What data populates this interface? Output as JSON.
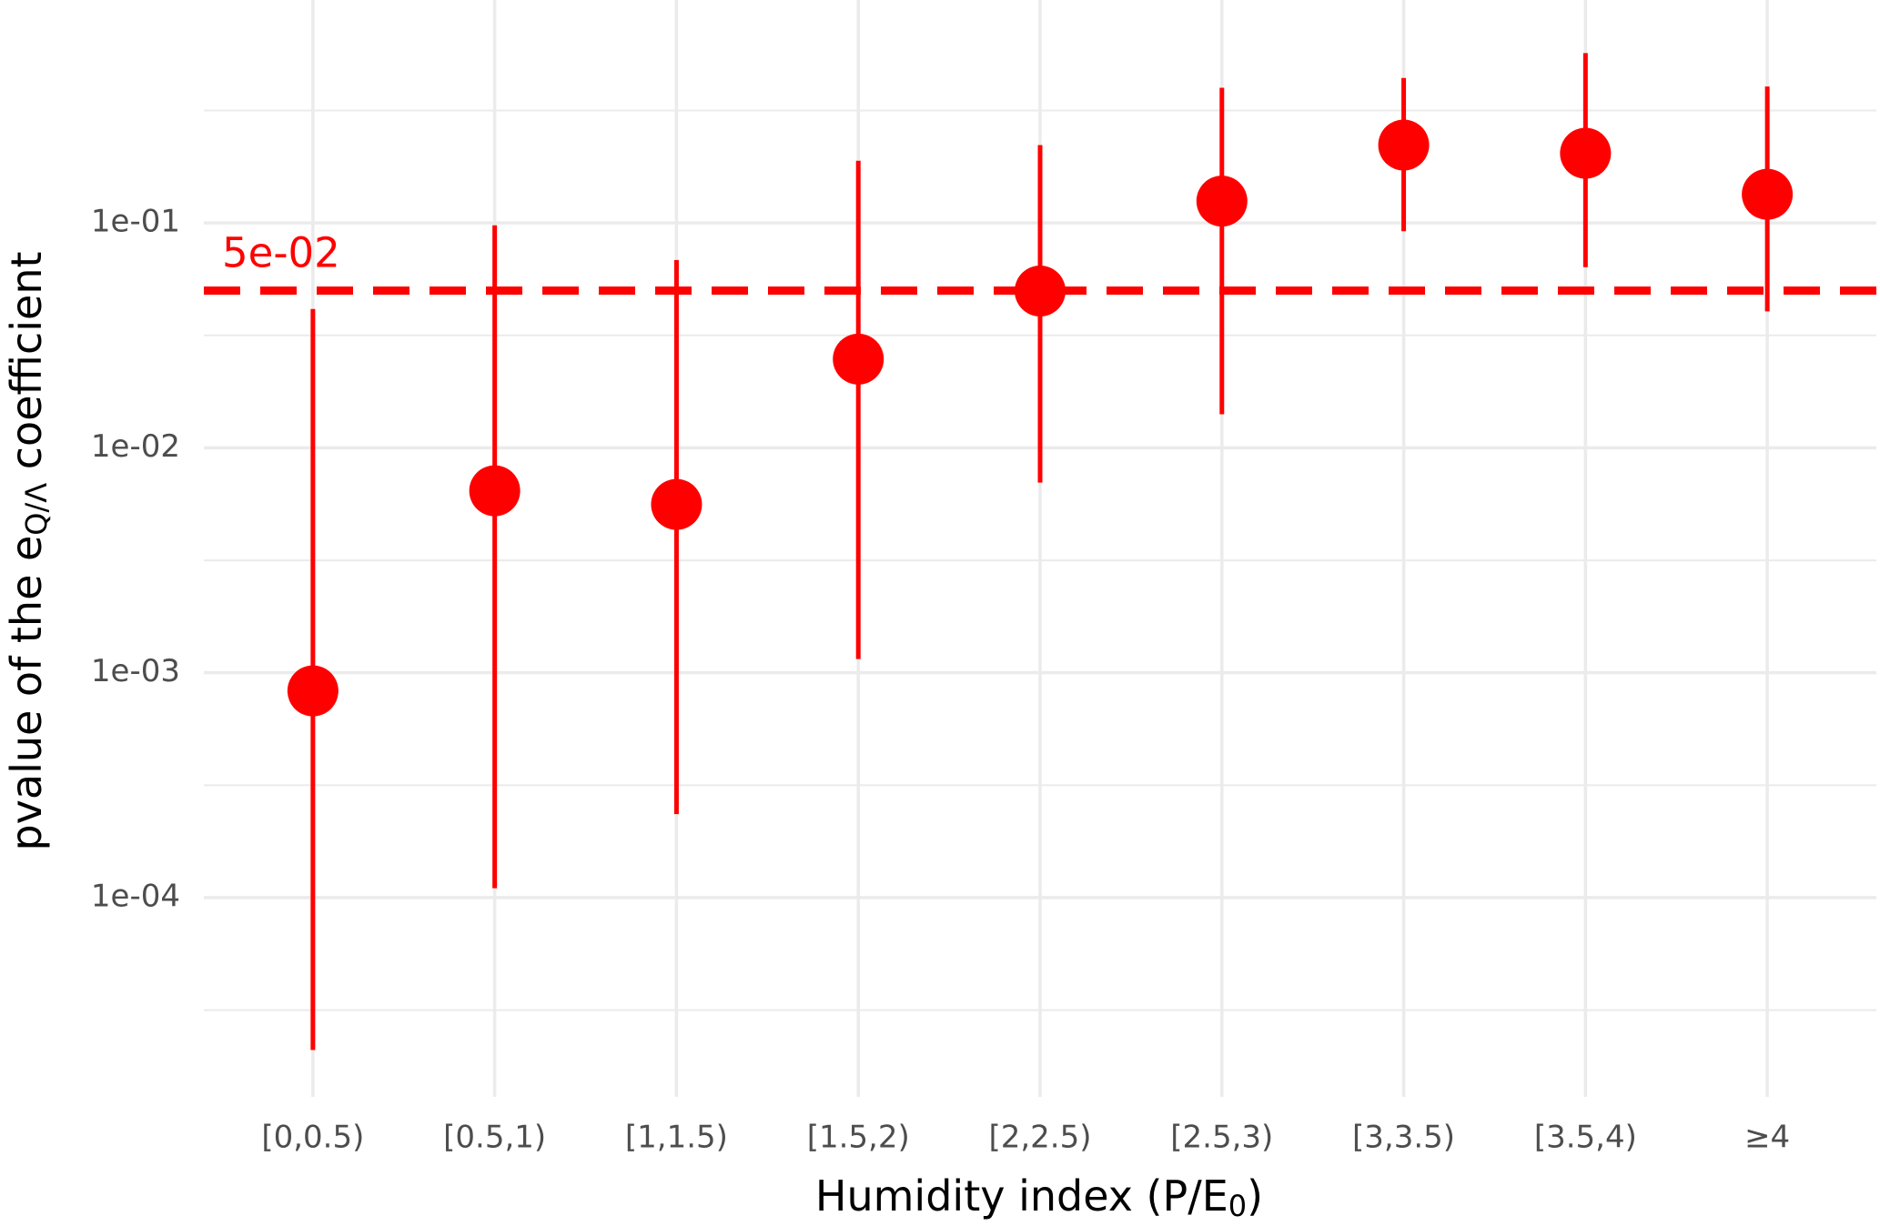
{
  "chart_data": {
    "type": "pointrange",
    "x_label": {
      "text": "Humidity index (P/E",
      "sub": "0",
      "after": ")"
    },
    "y_label": {
      "text": "pvalue of the e",
      "sub": "Q/Λ",
      "after": " coefficient"
    },
    "categories": [
      "[0,0.5)",
      "[0.5,1)",
      "[1,1.5)",
      "[1.5,2)",
      "[2,2.5)",
      "[2.5,3)",
      "[3,3.5)",
      "[3.5,4)",
      "≥4"
    ],
    "values": [
      0.00083,
      0.00644,
      0.0056,
      0.0248,
      0.0498,
      0.125,
      0.222,
      0.204,
      0.134
    ],
    "lower": [
      2.1e-05,
      0.00011,
      0.000235,
      0.00115,
      0.007,
      0.0141,
      0.0918,
      0.0636,
      0.0404
    ],
    "upper": [
      0.0414,
      0.0976,
      0.0684,
      0.189,
      0.222,
      0.399,
      0.441,
      0.569,
      0.404
    ],
    "color": "#ff0000",
    "y_log": true,
    "ylim": [
      1.3e-05,
      0.98
    ],
    "yticks": [
      {
        "value": 0.1,
        "label": "1e-01"
      },
      {
        "value": 0.01,
        "label": "1e-02"
      },
      {
        "value": 0.001,
        "label": "1e-03"
      },
      {
        "value": 0.0001,
        "label": "1e-04"
      }
    ],
    "minor_yticks": [
      0.316,
      0.0316,
      0.00316,
      0.000316,
      3.16e-05
    ],
    "threshold": {
      "value": 0.05,
      "label": "5e-02"
    },
    "grid": true
  }
}
